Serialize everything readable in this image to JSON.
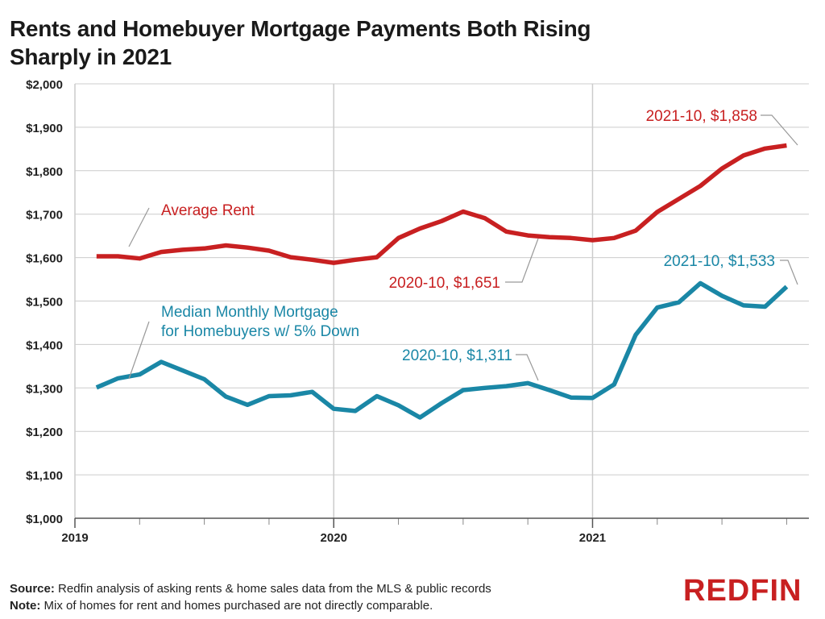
{
  "title": "Rents and Homebuyer Mortgage Payments Both Rising Sharply in 2021",
  "footer": {
    "source_label": "Source:",
    "source_text": " Redfin analysis of asking rents & home sales data from the MLS & public records",
    "note_label": "Note:",
    "note_text": " Mix of homes for rent and homes purchased are not directly comparable."
  },
  "brand": "REDFIN",
  "colors": {
    "rent": "#c82021",
    "mortgage": "#1a87a6",
    "grid": "#cccccc",
    "leader": "#999999"
  },
  "chart_data": {
    "type": "line",
    "title": "Rents and Homebuyer Mortgage Payments Both Rising Sharply in 2021",
    "ylim": [
      1000,
      2000
    ],
    "ytick_labels": [
      "$1,000",
      "$1,100",
      "$1,200",
      "$1,300",
      "$1,400",
      "$1,500",
      "$1,600",
      "$1,700",
      "$1,800",
      "$1,900",
      "$2,000"
    ],
    "year_labels": [
      "2019",
      "2020",
      "2021"
    ],
    "x": [
      "2019-02",
      "2019-03",
      "2019-04",
      "2019-05",
      "2019-06",
      "2019-07",
      "2019-08",
      "2019-09",
      "2019-10",
      "2019-11",
      "2019-12",
      "2020-01",
      "2020-02",
      "2020-03",
      "2020-04",
      "2020-05",
      "2020-06",
      "2020-07",
      "2020-08",
      "2020-09",
      "2020-10",
      "2020-11",
      "2020-12",
      "2021-01",
      "2021-02",
      "2021-03",
      "2021-04",
      "2021-05",
      "2021-06",
      "2021-07",
      "2021-08",
      "2021-09",
      "2021-10"
    ],
    "grid": true,
    "series": [
      {
        "name": "Average Rent",
        "values": [
          1603,
          1603,
          1598,
          1613,
          1618,
          1621,
          1628,
          1623,
          1616,
          1601,
          1595,
          1588,
          1595,
          1601,
          1645,
          1667,
          1684,
          1706,
          1691,
          1660,
          1651,
          1647,
          1645,
          1640,
          1645,
          1662,
          1705,
          1735,
          1765,
          1805,
          1835,
          1851,
          1858
        ]
      },
      {
        "name": "Median Monthly Mortgage\nfor Homebuyers w/ 5% Down",
        "values": [
          1301,
          1322,
          1331,
          1360,
          1340,
          1320,
          1280,
          1261,
          1281,
          1283,
          1291,
          1252,
          1247,
          1281,
          1260,
          1232,
          1265,
          1295,
          1300,
          1304,
          1311,
          1295,
          1278,
          1277,
          1308,
          1422,
          1485,
          1497,
          1541,
          1512,
          1490,
          1487,
          1533
        ]
      }
    ],
    "annotations": [
      {
        "text": "Average Rent"
      },
      {
        "text": "2020-10, $1,651"
      },
      {
        "text": "2021-10, $1,858"
      },
      {
        "text": "Median Monthly Mortgage"
      },
      {
        "text": "for Homebuyers w/ 5% Down"
      },
      {
        "text": "2020-10, $1,311"
      },
      {
        "text": "2021-10, $1,533"
      }
    ]
  }
}
